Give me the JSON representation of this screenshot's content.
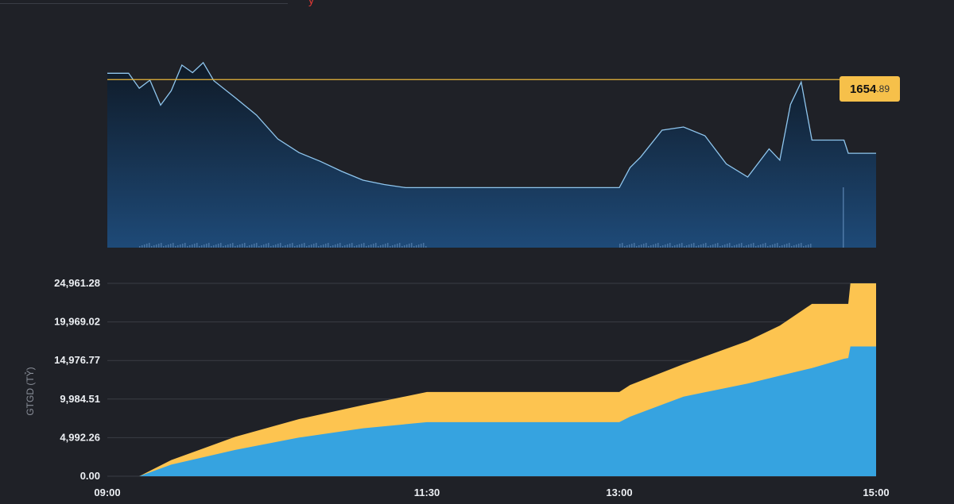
{
  "price_tag": {
    "int": "1654",
    "dec": ".89"
  },
  "chart_data": [
    {
      "type": "line",
      "title": "",
      "reference_line": 1654.89,
      "reference_color": "#e8b63a",
      "line_color": "#8fc6ee",
      "x": [
        "09:00",
        "09:10",
        "09:15",
        "09:20",
        "09:25",
        "09:30",
        "09:35",
        "09:40",
        "09:45",
        "09:50",
        "10:00",
        "10:10",
        "10:20",
        "10:30",
        "10:40",
        "10:50",
        "11:00",
        "11:10",
        "11:20",
        "11:30",
        "13:00",
        "13:05",
        "13:10",
        "13:20",
        "13:30",
        "13:40",
        "13:50",
        "14:00",
        "14:10",
        "14:15",
        "14:20",
        "14:25",
        "14:30",
        "14:40",
        "14:45",
        "14:47",
        "15:00"
      ],
      "y": [
        1655.9,
        1655.9,
        1653.5,
        1654.8,
        1650.8,
        1653.1,
        1657.2,
        1656.0,
        1657.6,
        1654.7,
        1652.0,
        1649.2,
        1645.4,
        1643.2,
        1641.8,
        1640.2,
        1638.8,
        1638.1,
        1637.6,
        1637.6,
        1637.6,
        1640.8,
        1642.5,
        1646.8,
        1647.3,
        1645.9,
        1641.4,
        1639.3,
        1643.8,
        1642.0,
        1650.9,
        1654.5,
        1645.2,
        1645.2,
        1645.2,
        1643.1,
        1643.1
      ],
      "ylim": [
        1628,
        1660
      ]
    },
    {
      "type": "area",
      "ylabel": "GTGD (TỶ)",
      "yticks": [
        "0.00",
        "4,992.26",
        "9,984.51",
        "14,976.77",
        "19,969.02",
        "24,961.28"
      ],
      "xticks": [
        "09:00",
        "11:30",
        "13:00",
        "15:00"
      ],
      "ylim": [
        0,
        24961.28
      ],
      "x": [
        "09:00",
        "09:15",
        "09:30",
        "10:00",
        "10:30",
        "11:00",
        "11:30",
        "13:00",
        "13:05",
        "13:30",
        "14:00",
        "14:15",
        "14:30",
        "14:45",
        "14:47",
        "14:48",
        "15:00"
      ],
      "series": [
        {
          "color": "#36a3e0",
          "values": [
            0,
            0,
            1500,
            3400,
            5000,
            6200,
            7000,
            7000,
            7700,
            10300,
            12000,
            13000,
            14000,
            15200,
            15300,
            16800,
            16800
          ]
        },
        {
          "color": "#fdc450",
          "values": [
            0,
            0,
            2100,
            5100,
            7400,
            9200,
            10900,
            10900,
            11800,
            14500,
            17500,
            19500,
            22300,
            22300,
            22300,
            24961.28,
            24961.28
          ]
        }
      ]
    }
  ]
}
